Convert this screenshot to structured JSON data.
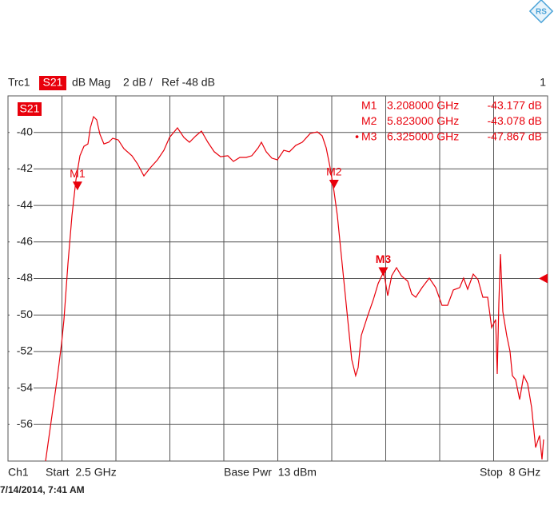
{
  "chart_data": {
    "type": "line",
    "header": {
      "trace": "Trc1",
      "param": "S21",
      "format": "dB Mag",
      "scale": "2 dB /",
      "ref": "Ref -48 dB",
      "channel_num": "1"
    },
    "footer": {
      "channel": "Ch1",
      "start": "Start  2.5 GHz",
      "base_power": "Base Pwr  13 dBm",
      "stop": "Stop  8 GHz"
    },
    "timestamp": "7/14/2014, 7:41 AM",
    "ref_level": -48,
    "xlim": [
      2.5,
      8
    ],
    "ylim": [
      -58,
      -38
    ],
    "yticks": [
      -40,
      -42,
      -44,
      -46,
      -48,
      -50,
      -52,
      -54,
      -56
    ],
    "grid": true,
    "series": [
      {
        "name": "S21",
        "color": "#e8000b",
        "x": [
          2.883,
          2.948,
          3.005,
          3.046,
          3.07,
          3.111,
          3.152,
          3.193,
          3.233,
          3.274,
          3.315,
          3.339,
          3.372,
          3.404,
          3.437,
          3.478,
          3.527,
          3.567,
          3.624,
          3.681,
          3.763,
          3.82,
          3.885,
          3.95,
          4.024,
          4.089,
          4.146,
          4.227,
          4.293,
          4.35,
          4.415,
          4.472,
          4.537,
          4.602,
          4.667,
          4.741,
          4.798,
          4.863,
          4.928,
          4.985,
          5.05,
          5.083,
          5.132,
          5.189,
          5.246,
          5.311,
          5.368,
          5.433,
          5.499,
          5.58,
          5.653,
          5.702,
          5.743,
          5.784,
          5.824,
          5.857,
          5.906,
          5.955,
          6.004,
          6.044,
          6.069,
          6.101,
          6.167,
          6.224,
          6.273,
          6.33,
          6.37,
          6.411,
          6.46,
          6.509,
          6.574,
          6.615,
          6.656,
          6.721,
          6.794,
          6.859,
          6.924,
          6.981,
          7.039,
          7.104,
          7.144,
          7.185,
          7.242,
          7.291,
          7.34,
          7.389,
          7.43,
          7.47,
          7.487,
          7.503,
          7.519,
          7.544,
          7.584,
          7.617,
          7.641,
          7.674,
          7.715,
          7.756,
          7.796,
          7.837,
          7.878,
          7.918,
          7.943,
          7.959
        ],
        "values": [
          -58.0,
          -55.51,
          -53.32,
          -51.57,
          -50.25,
          -47.19,
          -44.56,
          -42.6,
          -41.28,
          -40.76,
          -40.63,
          -39.75,
          -39.14,
          -39.31,
          -40.1,
          -40.63,
          -40.54,
          -40.32,
          -40.41,
          -40.89,
          -41.28,
          -41.72,
          -42.38,
          -41.94,
          -41.5,
          -40.98,
          -40.28,
          -39.75,
          -40.28,
          -40.54,
          -40.19,
          -39.93,
          -40.54,
          -41.06,
          -41.33,
          -41.28,
          -41.59,
          -41.37,
          -41.37,
          -41.28,
          -40.84,
          -40.54,
          -41.06,
          -41.41,
          -41.5,
          -40.98,
          -41.06,
          -40.71,
          -40.54,
          -40.06,
          -39.97,
          -40.19,
          -40.84,
          -41.94,
          -43.25,
          -44.56,
          -47.19,
          -49.82,
          -52.44,
          -53.32,
          -52.88,
          -51.13,
          -50.04,
          -49.16,
          -48.28,
          -47.63,
          -48.94,
          -47.85,
          -47.41,
          -47.85,
          -48.15,
          -48.85,
          -49.03,
          -48.5,
          -47.98,
          -48.5,
          -49.47,
          -49.47,
          -48.63,
          -48.5,
          -47.98,
          -48.59,
          -47.76,
          -48.07,
          -49.03,
          -49.03,
          -50.69,
          -50.25,
          -53.23,
          -49.38,
          -46.67,
          -49.82,
          -51.13,
          -52.0,
          -53.32,
          -53.54,
          -54.63,
          -53.32,
          -53.76,
          -55.07,
          -57.26,
          -56.6,
          -57.91,
          -56.82
        ]
      }
    ],
    "markers": [
      {
        "name": "M1",
        "prefix": "",
        "x": 3.208,
        "x_label": "3.208000 GHz",
        "value": -43.177,
        "value_label": "-43.177 dB"
      },
      {
        "name": "M2",
        "prefix": "",
        "x": 5.823,
        "x_label": "5.823000 GHz",
        "value": -43.078,
        "value_label": "-43.078 dB"
      },
      {
        "name": "M3",
        "prefix": "•",
        "x": 6.325,
        "x_label": "6.325000 GHz",
        "value": -47.867,
        "value_label": "-47.867 dB",
        "active": true
      }
    ]
  }
}
